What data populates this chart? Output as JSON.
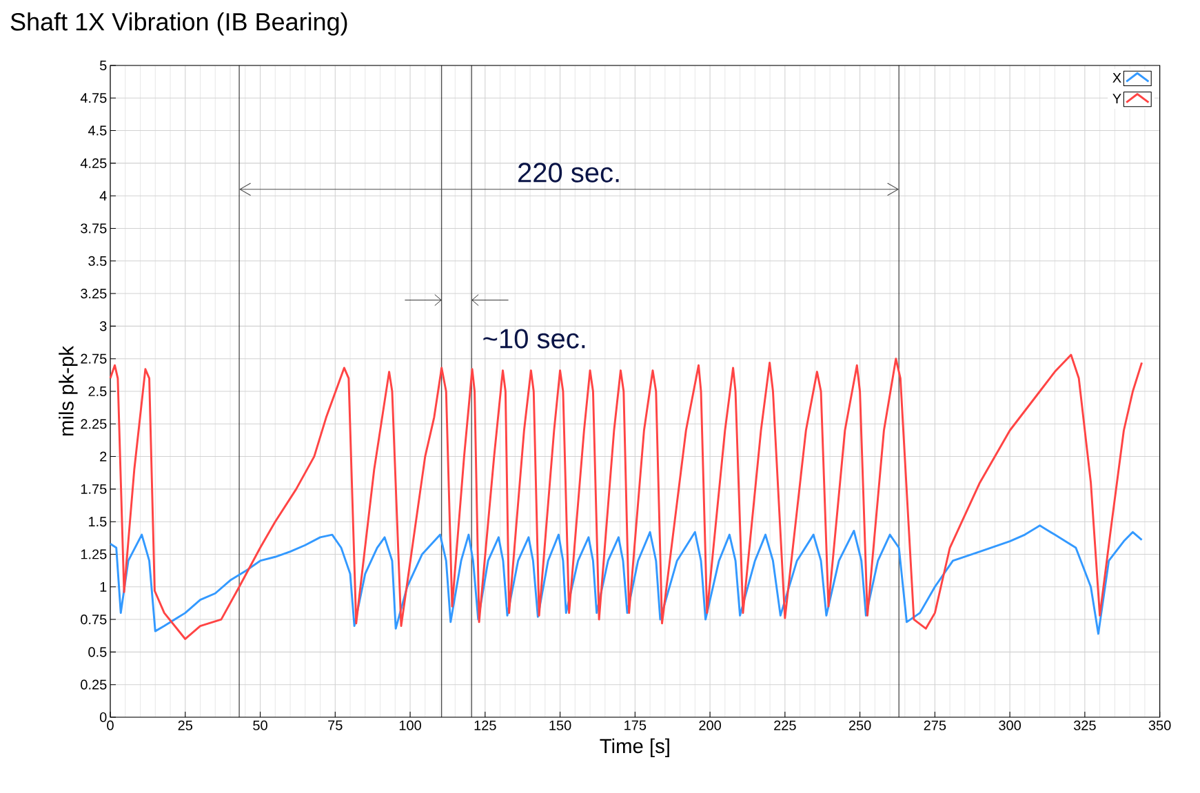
{
  "chart_data": {
    "type": "line",
    "title": "Shaft 1X Vibration (IB Bearing)",
    "xlabel": "Time [s]",
    "ylabel": "mils pk-pk",
    "xlim": [
      0,
      350
    ],
    "ylim": [
      0,
      5
    ],
    "xticks": [
      0,
      25,
      50,
      75,
      100,
      125,
      150,
      175,
      200,
      225,
      250,
      275,
      300,
      325,
      350
    ],
    "yticks": [
      0,
      0.25,
      0.5,
      0.75,
      1,
      1.25,
      1.5,
      1.75,
      2,
      2.25,
      2.5,
      2.75,
      3,
      3.25,
      3.5,
      3.75,
      4,
      4.25,
      4.5,
      4.75,
      5
    ],
    "grid": true,
    "legend": "top right",
    "marker": "none",
    "line_style": "solid",
    "series": [
      {
        "name": "X",
        "color": "#3399ff",
        "x": [
          0,
          2,
          3.5,
          6,
          10.5,
          13,
          15,
          18,
          25,
          30,
          35,
          40,
          45,
          50,
          55,
          60,
          65,
          70,
          74,
          77,
          80,
          81.4,
          85,
          89,
          91.5,
          94,
          95.2,
          99,
          104,
          108,
          110,
          112,
          113.5,
          117,
          119.5,
          121,
          122.7,
          126,
          129.5,
          131,
          132.4,
          136,
          139.5,
          141,
          142.6,
          146,
          149.5,
          151,
          152,
          156,
          159.5,
          161,
          162.2,
          166,
          169.5,
          171,
          172.4,
          176,
          180,
          182,
          183.4,
          189,
          195,
          197,
          198.5,
          203,
          206.5,
          208.5,
          210,
          215,
          218.5,
          221,
          223.5,
          229,
          234.5,
          237,
          238.8,
          243,
          248,
          250.5,
          252,
          256,
          260,
          263,
          265.6,
          270,
          275,
          281,
          290,
          300,
          305,
          310,
          315,
          322,
          327,
          329.5,
          333,
          338,
          341,
          344
        ],
        "values": [
          1.33,
          1.3,
          0.8,
          1.2,
          1.4,
          1.2,
          0.66,
          0.7,
          0.8,
          0.9,
          0.95,
          1.05,
          1.12,
          1.2,
          1.23,
          1.27,
          1.32,
          1.38,
          1.4,
          1.3,
          1.1,
          0.7,
          1.1,
          1.3,
          1.38,
          1.2,
          0.68,
          1.0,
          1.25,
          1.35,
          1.4,
          1.2,
          0.73,
          1.2,
          1.4,
          1.2,
          0.75,
          1.2,
          1.38,
          1.2,
          0.78,
          1.2,
          1.38,
          1.2,
          0.77,
          1.2,
          1.4,
          1.2,
          0.8,
          1.2,
          1.38,
          1.2,
          0.8,
          1.2,
          1.38,
          1.2,
          0.8,
          1.2,
          1.42,
          1.2,
          0.75,
          1.2,
          1.42,
          1.2,
          0.75,
          1.2,
          1.4,
          1.2,
          0.78,
          1.2,
          1.4,
          1.2,
          0.78,
          1.2,
          1.4,
          1.2,
          0.78,
          1.2,
          1.43,
          1.2,
          0.78,
          1.2,
          1.4,
          1.3,
          0.73,
          0.8,
          1.0,
          1.2,
          1.27,
          1.35,
          1.4,
          1.47,
          1.4,
          1.3,
          1.0,
          0.64,
          1.2,
          1.35,
          1.42,
          1.36
        ]
      },
      {
        "name": "Y",
        "color": "#ff4444",
        "x": [
          0,
          1.5,
          2.5,
          4.6,
          8,
          11.7,
          13,
          14.8,
          18,
          25,
          30,
          37,
          43,
          50,
          55,
          62,
          68,
          72,
          78,
          79.5,
          82,
          88,
          93,
          94,
          97,
          105,
          108,
          110.5,
          112,
          114,
          118,
          120.7,
          121.5,
          123,
          128,
          130.9,
          131.8,
          133,
          138,
          140.3,
          141.2,
          143,
          148,
          150,
          151,
          153,
          158,
          160,
          161,
          163,
          168,
          170.2,
          171.2,
          173,
          178,
          180.9,
          182,
          184,
          192,
          196.2,
          197,
          199,
          205,
          207.7,
          208.5,
          211,
          217,
          219.9,
          221,
          225,
          232,
          235.7,
          237,
          239.5,
          245,
          249,
          250,
          252.5,
          258,
          262,
          263.5,
          268,
          272,
          275,
          280,
          290,
          300,
          310,
          315,
          320.4,
          323,
          327,
          330,
          334,
          338,
          341,
          344
        ],
        "values": [
          2.6,
          2.7,
          2.6,
          0.96,
          1.9,
          2.67,
          2.6,
          0.97,
          0.8,
          0.6,
          0.7,
          0.75,
          1.0,
          1.3,
          1.5,
          1.75,
          2.0,
          2.3,
          2.68,
          2.6,
          0.72,
          1.9,
          2.65,
          2.5,
          0.7,
          2.0,
          2.3,
          2.68,
          2.5,
          0.85,
          2.0,
          2.67,
          2.5,
          0.73,
          2.0,
          2.66,
          2.5,
          0.8,
          2.2,
          2.66,
          2.5,
          0.78,
          2.2,
          2.66,
          2.5,
          0.8,
          2.2,
          2.66,
          2.5,
          0.75,
          2.2,
          2.66,
          2.5,
          0.8,
          2.2,
          2.66,
          2.5,
          0.72,
          2.2,
          2.7,
          2.5,
          0.8,
          2.2,
          2.68,
          2.5,
          0.8,
          2.2,
          2.72,
          2.5,
          0.76,
          2.2,
          2.65,
          2.5,
          0.85,
          2.2,
          2.7,
          2.5,
          0.78,
          2.2,
          2.75,
          2.6,
          0.75,
          0.68,
          0.8,
          1.3,
          1.8,
          2.2,
          2.5,
          2.65,
          2.78,
          2.6,
          1.8,
          0.78,
          1.5,
          2.2,
          2.5,
          2.72
        ]
      }
    ],
    "ref_lines": [
      {
        "axis": "x",
        "value": 43,
        "color": "#000000"
      },
      {
        "axis": "x",
        "value": 263,
        "color": "#000000"
      },
      {
        "axis": "x",
        "value": 110.5,
        "color": "#000000"
      },
      {
        "axis": "x",
        "value": 120.5,
        "color": "#000000"
      }
    ],
    "annotations": [
      "220 sec.",
      "~10 sec."
    ]
  }
}
